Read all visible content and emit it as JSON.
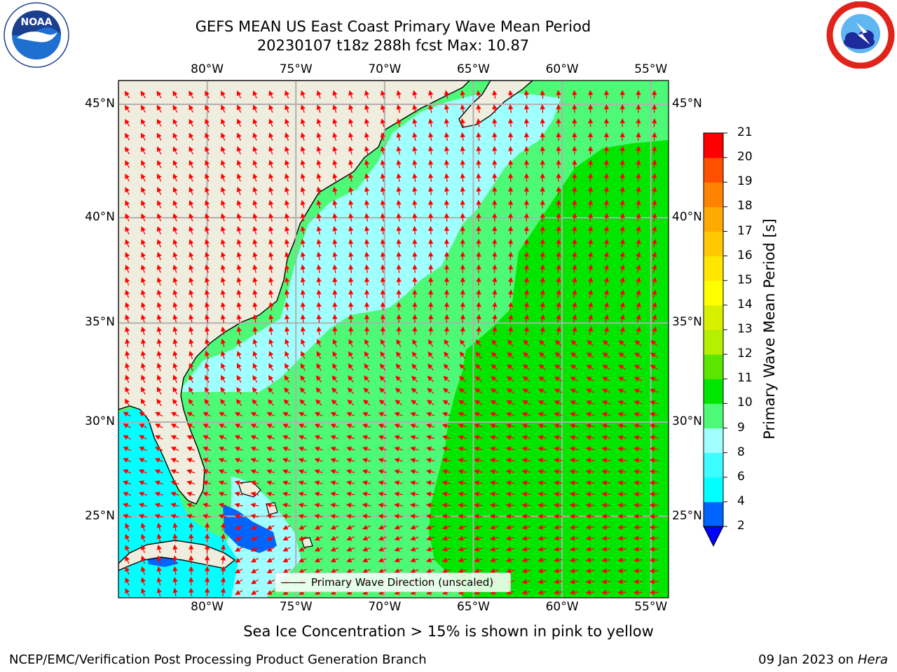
{
  "title": {
    "line1": "GEFS MEAN US East Coast Primary Wave Mean Period",
    "line2": "20230107 t18z 288h fcst   Max: 10.87"
  },
  "logos": {
    "left": {
      "name": "noaa-logo",
      "text": "NOAA",
      "ring_text": "NATIONAL OCEANIC AND ATMOSPHERIC ADMINISTRATION · U.S. DEPARTMENT OF COMMERCE"
    },
    "right": {
      "name": "nws-logo",
      "ring_text": "NATIONAL WEATHER SERVICE"
    }
  },
  "map": {
    "lon_range": [
      -85,
      -54
    ],
    "lat_range": [
      20.5,
      46
    ],
    "lon_ticks": [
      {
        "value": -80,
        "label": "80°W"
      },
      {
        "value": -75,
        "label": "75°W"
      },
      {
        "value": -70,
        "label": "70°W"
      },
      {
        "value": -65,
        "label": "65°W"
      },
      {
        "value": -60,
        "label": "60°W"
      },
      {
        "value": -55,
        "label": "55°W"
      }
    ],
    "lat_ticks": [
      {
        "value": 45,
        "label": "45°N"
      },
      {
        "value": 40,
        "label": "40°N"
      },
      {
        "value": 35,
        "label": "35°N"
      },
      {
        "value": 30,
        "label": "30°N"
      },
      {
        "value": 25,
        "label": "25°N"
      }
    ],
    "gridlines": true,
    "land_color": "#efedde",
    "arrow_color": "#ff0000",
    "legend": {
      "label": "Primary Wave Direction (unscaled)",
      "placement": "lower-center"
    }
  },
  "colorbar": {
    "label": "Primary Wave Mean Period [s]",
    "ticks": [
      "2",
      "4",
      "6",
      "8",
      "9",
      "10",
      "11",
      "12",
      "13",
      "14",
      "15",
      "16",
      "17",
      "18",
      "19",
      "20",
      "21"
    ],
    "colors": [
      "#0064ff",
      "#00ffff",
      "#3dfcff",
      "#a0ffff",
      "#4dfa78",
      "#00e600",
      "#5ae600",
      "#b4f000",
      "#d7f000",
      "#ffff00",
      "#ffe600",
      "#ffc800",
      "#ffaa00",
      "#ff8200",
      "#ff5000",
      "#ff0000"
    ],
    "extend_below_color": "#0000ff"
  },
  "footer": {
    "note": "Sea Ice Concentration > 15% is shown in pink to yellow",
    "credit_left": "NCEP/EMC/Verification Post Processing Product Generation Branch",
    "credit_date": "09 Jan 2023 on",
    "credit_host": "Hera"
  }
}
